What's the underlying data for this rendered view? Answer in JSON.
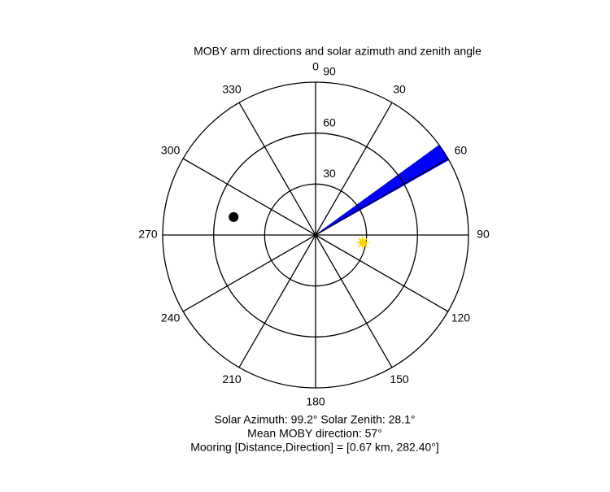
{
  "chart_data": {
    "type": "polar",
    "title": "MOBY arm directions and solar azimuth and zenith angle",
    "rlim": [
      0,
      90
    ],
    "rticks": [
      30,
      60,
      90
    ],
    "thetaticks": [
      0,
      30,
      60,
      90,
      120,
      150,
      180,
      210,
      240,
      270,
      300,
      330
    ],
    "wedge": {
      "theta": [
        54,
        60.5
      ],
      "r": 90,
      "color": "#0000ff"
    },
    "points": [
      {
        "theta": 99.2,
        "r": 28.1,
        "color": "#ffd700",
        "marker": "star"
      },
      {
        "theta": 282.4,
        "r": 49.4,
        "color": "#000000",
        "marker": "circle"
      }
    ],
    "notes": [
      "Solar Azimuth: 99.2°   Solar Zenith: 28.1°",
      "Mean MOBY direction: 57°",
      "Mooring [Distance,Direction] = [0.67 km, 282.40°]"
    ]
  }
}
